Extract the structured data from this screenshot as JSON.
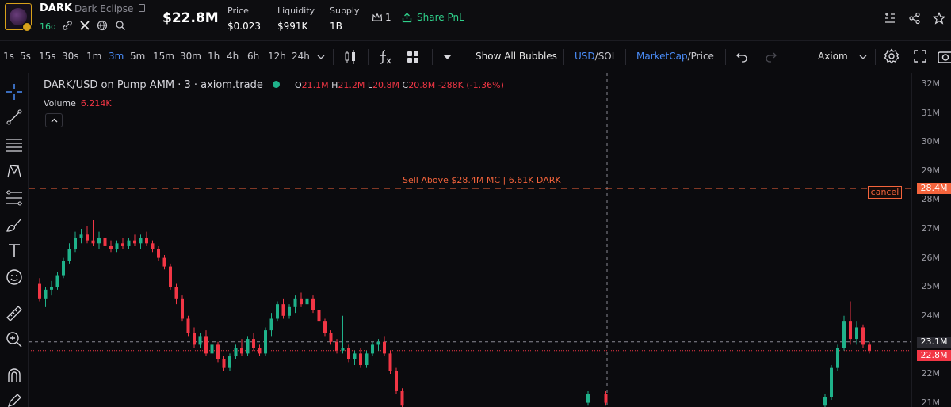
{
  "header": {
    "symbol": "DARK",
    "token_name": "Dark Eclipse",
    "age": "16d",
    "market_cap": "$22.8M",
    "stats": [
      {
        "label": "Price",
        "value": "$0.023"
      },
      {
        "label": "Liquidity",
        "value": "$991K"
      },
      {
        "label": "Supply",
        "value": "1B"
      }
    ],
    "holders_count": "1",
    "share_label": "Share PnL"
  },
  "toolbar": {
    "intervals": [
      "1s",
      "5s",
      "15s",
      "30s",
      "1m",
      "3m",
      "5m",
      "15m",
      "30m",
      "1h",
      "4h",
      "6h",
      "12h",
      "24h"
    ],
    "active_interval": "3m",
    "show_bubbles": "Show All Bubbles",
    "currency_active": "USD",
    "currency_sep": "/",
    "currency_other": "SOL",
    "metric_active": "MarketCap",
    "metric_sep": "/",
    "metric_other": "Price",
    "provider": "Axiom"
  },
  "legend": {
    "pair": "DARK/USD on Pump AMM · 3 · axiom.trade",
    "ohlc": [
      {
        "k": "O",
        "v": "21.1M"
      },
      {
        "k": "H",
        "v": "21.2M"
      },
      {
        "k": "L",
        "v": "20.8M"
      },
      {
        "k": "C",
        "v": "20.8M -288K (-1.36%)"
      }
    ],
    "volume_label": "Volume",
    "volume_value": "6.214K"
  },
  "order": {
    "label": "Sell Above $28.4M MC | 6.61K DARK",
    "cancel": "cancel",
    "price_badge": "28.4M"
  },
  "badges": {
    "crosshair_price": "23.1M",
    "last_price": "22.8M"
  },
  "colors": {
    "up": "#1fb28a",
    "down": "#f23645",
    "order": "#f4643c",
    "accent": "#4a8cf7"
  },
  "chart_data": {
    "type": "candlestick",
    "ylim": [
      21,
      32
    ],
    "y_ticks": [
      "32M",
      "31M",
      "30M",
      "29M",
      "28M",
      "27M",
      "26M",
      "25M",
      "24M",
      "23M",
      "22M",
      "21M"
    ],
    "order_line": 28.4,
    "last_price": 22.8,
    "crosshair_price": 23.1,
    "grid": false,
    "candles": [
      [
        25.1,
        25.3,
        24.5,
        24.6
      ],
      [
        24.6,
        25.0,
        24.3,
        24.9
      ],
      [
        24.9,
        25.2,
        24.7,
        25.0
      ],
      [
        25.0,
        25.5,
        24.9,
        25.4
      ],
      [
        25.4,
        26.0,
        25.3,
        25.9
      ],
      [
        25.9,
        26.5,
        25.8,
        26.3
      ],
      [
        26.3,
        26.9,
        26.2,
        26.7
      ],
      [
        26.7,
        27.0,
        26.5,
        26.8
      ],
      [
        26.8,
        27.1,
        26.5,
        26.6
      ],
      [
        26.6,
        27.3,
        26.4,
        26.5
      ],
      [
        26.5,
        26.9,
        26.3,
        26.7
      ],
      [
        26.7,
        26.9,
        26.3,
        26.4
      ],
      [
        26.4,
        26.6,
        26.2,
        26.3
      ],
      [
        26.3,
        26.6,
        26.2,
        26.5
      ],
      [
        26.5,
        26.7,
        26.3,
        26.4
      ],
      [
        26.4,
        26.7,
        26.3,
        26.6
      ],
      [
        26.6,
        26.8,
        26.4,
        26.5
      ],
      [
        26.5,
        26.8,
        26.3,
        26.7
      ],
      [
        26.7,
        26.9,
        26.4,
        26.5
      ],
      [
        26.5,
        26.6,
        26.2,
        26.3
      ],
      [
        26.3,
        26.4,
        25.9,
        26.0
      ],
      [
        26.0,
        26.1,
        25.6,
        25.7
      ],
      [
        25.7,
        25.8,
        24.9,
        25.0
      ],
      [
        25.0,
        25.1,
        24.4,
        24.6
      ],
      [
        24.6,
        24.7,
        23.8,
        23.9
      ],
      [
        23.9,
        24.0,
        23.3,
        23.4
      ],
      [
        23.4,
        23.6,
        22.9,
        23.0
      ],
      [
        23.0,
        23.4,
        22.9,
        23.3
      ],
      [
        23.3,
        23.5,
        22.6,
        22.7
      ],
      [
        22.7,
        23.1,
        22.5,
        23.0
      ],
      [
        23.0,
        23.1,
        22.4,
        22.5
      ],
      [
        22.5,
        22.6,
        22.1,
        22.2
      ],
      [
        22.2,
        22.7,
        22.1,
        22.6
      ],
      [
        22.6,
        23.0,
        22.5,
        22.9
      ],
      [
        22.9,
        23.2,
        22.6,
        22.7
      ],
      [
        22.7,
        23.3,
        22.6,
        23.2
      ],
      [
        23.2,
        23.4,
        22.8,
        22.9
      ],
      [
        22.9,
        23.0,
        22.6,
        22.7
      ],
      [
        22.7,
        23.6,
        22.6,
        23.5
      ],
      [
        23.5,
        24.1,
        23.3,
        23.9
      ],
      [
        23.9,
        24.5,
        23.8,
        24.4
      ],
      [
        24.4,
        24.6,
        23.9,
        24.0
      ],
      [
        24.0,
        24.4,
        23.9,
        24.3
      ],
      [
        24.3,
        24.7,
        24.1,
        24.6
      ],
      [
        24.6,
        24.8,
        24.3,
        24.4
      ],
      [
        24.4,
        24.7,
        24.3,
        24.6
      ],
      [
        24.6,
        24.7,
        24.1,
        24.2
      ],
      [
        24.2,
        24.3,
        23.7,
        23.8
      ],
      [
        23.8,
        23.9,
        23.3,
        23.4
      ],
      [
        23.4,
        23.5,
        23.0,
        23.1
      ],
      [
        23.1,
        23.2,
        22.7,
        22.8
      ],
      [
        22.8,
        24.0,
        22.7,
        22.9
      ],
      [
        22.9,
        23.0,
        22.4,
        22.5
      ],
      [
        22.5,
        22.8,
        22.3,
        22.7
      ],
      [
        22.7,
        22.9,
        22.2,
        22.3
      ],
      [
        22.3,
        22.8,
        22.2,
        22.7
      ],
      [
        22.7,
        23.1,
        22.6,
        23.0
      ],
      [
        23.0,
        23.2,
        22.8,
        23.1
      ],
      [
        23.1,
        23.3,
        22.6,
        22.7
      ],
      [
        22.7,
        22.8,
        22.0,
        22.1
      ],
      [
        22.1,
        22.2,
        21.3,
        21.4
      ],
      [
        21.4,
        21.5,
        20.8,
        20.9
      ]
    ],
    "gap_after": 61,
    "candles_late": [
      [
        21.0,
        21.4,
        20.9,
        21.3
      ],
      [
        21.3,
        21.4,
        20.9,
        21.0
      ]
    ],
    "candles_end": [
      [
        20.9,
        21.3,
        20.8,
        21.2
      ],
      [
        21.2,
        22.3,
        21.1,
        22.2
      ],
      [
        22.2,
        23.0,
        22.1,
        22.9
      ],
      [
        22.9,
        24.0,
        22.8,
        23.8
      ],
      [
        23.8,
        24.5,
        23.0,
        23.2
      ],
      [
        23.2,
        23.8,
        23.0,
        23.6
      ],
      [
        23.6,
        23.7,
        22.9,
        23.0
      ],
      [
        23.0,
        23.1,
        22.7,
        22.8
      ]
    ]
  }
}
